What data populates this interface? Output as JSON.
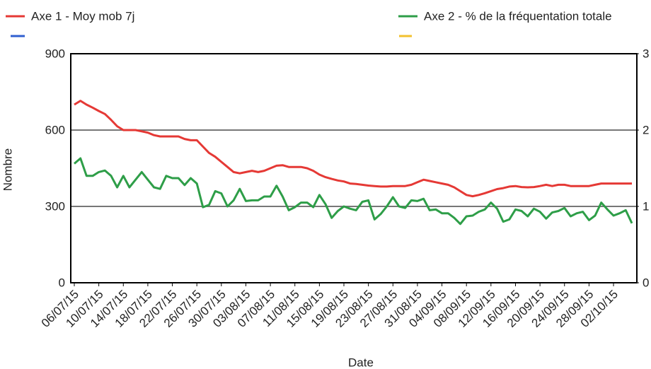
{
  "chart_data": {
    "type": "line",
    "xlabel": "Date",
    "ylabel": "Nombre",
    "categories": [
      "06/07/15",
      null,
      null,
      null,
      "10/07/15",
      null,
      null,
      null,
      "14/07/15",
      null,
      null,
      null,
      "18/07/15",
      null,
      null,
      null,
      "22/07/15",
      null,
      null,
      null,
      "26/07/15",
      null,
      null,
      null,
      "30/07/15",
      null,
      null,
      null,
      "03/08/15",
      null,
      null,
      null,
      "07/08/15",
      null,
      null,
      null,
      "11/08/15",
      null,
      null,
      null,
      "15/08/15",
      null,
      null,
      null,
      "19/08/15",
      null,
      null,
      null,
      "23/08/15",
      null,
      null,
      null,
      "27/08/15",
      null,
      null,
      null,
      "31/08/15",
      null,
      null,
      null,
      "04/09/15",
      null,
      null,
      null,
      "08/09/15",
      null,
      null,
      null,
      "12/09/15",
      null,
      null,
      null,
      "16/09/15",
      null,
      null,
      null,
      "20/09/15",
      null,
      null,
      null,
      "24/09/15",
      null,
      null,
      null,
      "28/09/15",
      null,
      null,
      null,
      "02/10/15",
      null,
      null,
      null
    ],
    "series": [
      {
        "name": "Axe 1 - Moy mob 7j",
        "color": "#e53935",
        "values": [
          700,
          715,
          700,
          688,
          675,
          663,
          640,
          615,
          600,
          600,
          600,
          595,
          590,
          580,
          575,
          575,
          575,
          575,
          565,
          560,
          560,
          535,
          510,
          495,
          475,
          455,
          435,
          430,
          435,
          440,
          435,
          440,
          450,
          460,
          462,
          455,
          455,
          455,
          450,
          440,
          425,
          415,
          408,
          402,
          398,
          390,
          388,
          385,
          382,
          380,
          378,
          378,
          380,
          380,
          380,
          385,
          395,
          405,
          400,
          395,
          390,
          385,
          375,
          360,
          345,
          340,
          345,
          352,
          360,
          368,
          372,
          378,
          380,
          376,
          375,
          376,
          380,
          385,
          380,
          385,
          385,
          380,
          380,
          380,
          380,
          385,
          390,
          390,
          390,
          390,
          390,
          390
        ]
      },
      {
        "name": "Axe 2 - % de la fréquentation totale",
        "color": "#2e9e48",
        "axis": "y2",
        "values": [
          1.56,
          1.63,
          1.4,
          1.4,
          1.45,
          1.47,
          1.4,
          1.25,
          1.4,
          1.25,
          1.35,
          1.45,
          1.35,
          1.25,
          1.23,
          1.4,
          1.37,
          1.37,
          1.28,
          1.37,
          1.3,
          0.99,
          1.02,
          1.2,
          1.17,
          1.0,
          1.08,
          1.23,
          1.07,
          1.08,
          1.08,
          1.13,
          1.13,
          1.27,
          1.13,
          0.95,
          0.99,
          1.05,
          1.05,
          0.99,
          1.15,
          1.03,
          0.85,
          0.94,
          1.0,
          0.97,
          0.95,
          1.06,
          1.08,
          0.83,
          0.9,
          1.0,
          1.12,
          1.0,
          0.98,
          1.08,
          1.07,
          1.1,
          0.95,
          0.96,
          0.91,
          0.91,
          0.85,
          0.77,
          0.87,
          0.88,
          0.93,
          0.96,
          1.05,
          0.97,
          0.8,
          0.83,
          0.96,
          0.94,
          0.87,
          0.97,
          0.93,
          0.84,
          0.92,
          0.94,
          0.98,
          0.87,
          0.91,
          0.93,
          0.82,
          0.88,
          1.05,
          0.96,
          0.88,
          0.91,
          0.95,
          0.78
        ]
      }
    ],
    "ylim": [
      0,
      900
    ],
    "yticks": [
      0,
      300,
      600,
      900
    ],
    "y2lim": [
      0,
      3
    ],
    "y2ticks": [
      0,
      1,
      2,
      3
    ],
    "grid": true
  }
}
